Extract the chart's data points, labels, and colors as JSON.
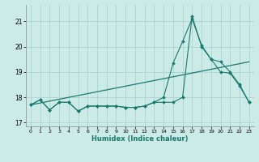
{
  "xlabel": "Humidex (Indice chaleur)",
  "bg_color": "#cceae6",
  "grid_color": "#aad4d0",
  "line_color": "#1a7a6e",
  "xlim": [
    -0.5,
    23.5
  ],
  "ylim": [
    16.85,
    21.65
  ],
  "yticks": [
    17,
    18,
    19,
    20,
    21
  ],
  "xticks": [
    0,
    1,
    2,
    3,
    4,
    5,
    6,
    7,
    8,
    9,
    10,
    11,
    12,
    13,
    14,
    15,
    16,
    17,
    18,
    19,
    20,
    21,
    22,
    23
  ],
  "series1_x": [
    0,
    1,
    2,
    3,
    4,
    5,
    6,
    7,
    8,
    9,
    10,
    11,
    12,
    13,
    14,
    15,
    16,
    17,
    18,
    19,
    20,
    21,
    22,
    23
  ],
  "series1_y": [
    17.7,
    17.9,
    17.5,
    17.8,
    17.8,
    17.45,
    17.65,
    17.65,
    17.65,
    17.65,
    17.6,
    17.6,
    17.65,
    17.8,
    17.8,
    17.8,
    18.0,
    21.2,
    20.0,
    19.5,
    19.4,
    19.0,
    18.5,
    17.8
  ],
  "series2_x": [
    0,
    1,
    2,
    3,
    4,
    5,
    6,
    7,
    8,
    9,
    10,
    11,
    12,
    13,
    14,
    15,
    16,
    17,
    18,
    19,
    20,
    21,
    22,
    23
  ],
  "series2_y": [
    17.7,
    17.9,
    17.5,
    17.8,
    17.8,
    17.45,
    17.65,
    17.65,
    17.65,
    17.65,
    17.6,
    17.6,
    17.65,
    17.8,
    18.0,
    19.35,
    20.2,
    21.1,
    20.05,
    19.5,
    19.0,
    18.95,
    18.45,
    17.8
  ],
  "series3_x": [
    0,
    23
  ],
  "series3_y": [
    17.7,
    19.4
  ]
}
